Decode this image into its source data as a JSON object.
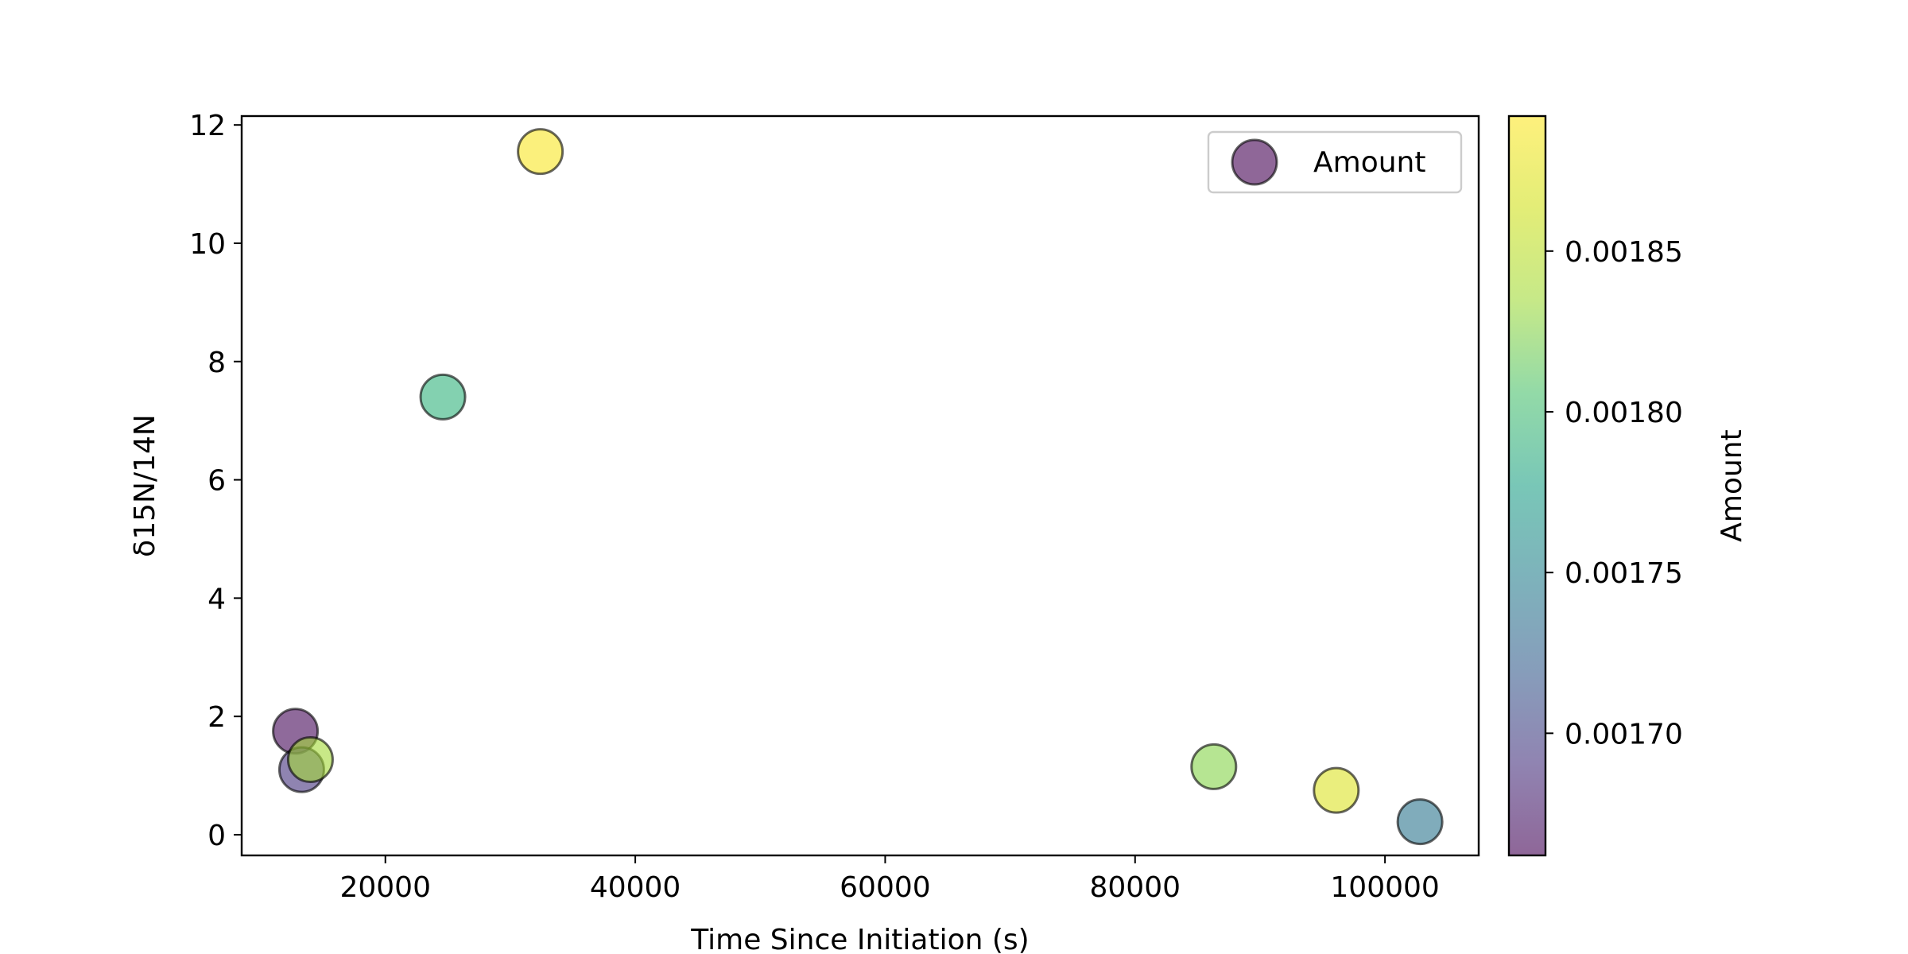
{
  "chart_data": {
    "type": "scatter",
    "xlabel": "Time Since Initiation (s)",
    "ylabel": "δ15N/14N",
    "xlim": [
      8500,
      107500
    ],
    "ylim": [
      -0.35,
      12.15
    ],
    "x_ticks": [
      20000,
      40000,
      60000,
      80000,
      100000
    ],
    "y_ticks": [
      0,
      2,
      4,
      6,
      8,
      10,
      12
    ],
    "grid": false,
    "legend": {
      "position": "top-right",
      "entries": [
        "Amount"
      ]
    },
    "series": [
      {
        "name": "Amount",
        "points": [
          {
            "x": 12800,
            "y": 1.75,
            "amount": 0.001665
          },
          {
            "x": 13300,
            "y": 1.1,
            "amount": 0.001695
          },
          {
            "x": 14000,
            "y": 1.27,
            "amount": 0.00186
          },
          {
            "x": 24600,
            "y": 7.4,
            "amount": 0.00181
          },
          {
            "x": 32400,
            "y": 11.55,
            "amount": 0.00189
          },
          {
            "x": 86300,
            "y": 1.15,
            "amount": 0.00185
          },
          {
            "x": 96100,
            "y": 0.75,
            "amount": 0.00188
          },
          {
            "x": 102800,
            "y": 0.22,
            "amount": 0.00175
          }
        ]
      }
    ],
    "colorbar": {
      "label": "Amount",
      "colormap": "viridis",
      "alpha": 0.6,
      "range": [
        0.001662,
        0.001892
      ],
      "ticks": [
        0.0017,
        0.00175,
        0.0018,
        0.00185
      ],
      "tick_labels": [
        "0.00170",
        "0.00175",
        "0.00180",
        "0.00185"
      ]
    }
  }
}
